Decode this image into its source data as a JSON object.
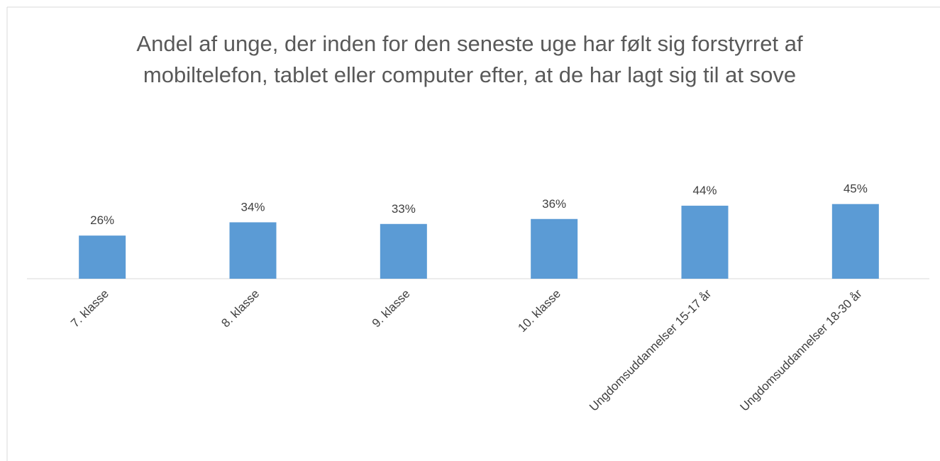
{
  "chart_data": {
    "type": "bar",
    "title": "Andel af unge, der inden for den seneste uge har følt sig forstyrret af mobiltelefon, tablet eller computer efter, at de har lagt sig til at sove",
    "categories": [
      "7. klasse",
      "8. klasse",
      "9. klasse",
      "10. klasse",
      "Ungdomsuddannelser 15-17 år",
      "Ungdomsuddannelser 18-30 år"
    ],
    "values": [
      26,
      34,
      33,
      36,
      44,
      45
    ],
    "value_labels": [
      "26%",
      "34%",
      "33%",
      "36%",
      "44%",
      "45%"
    ],
    "color": "#5b9bd5"
  }
}
